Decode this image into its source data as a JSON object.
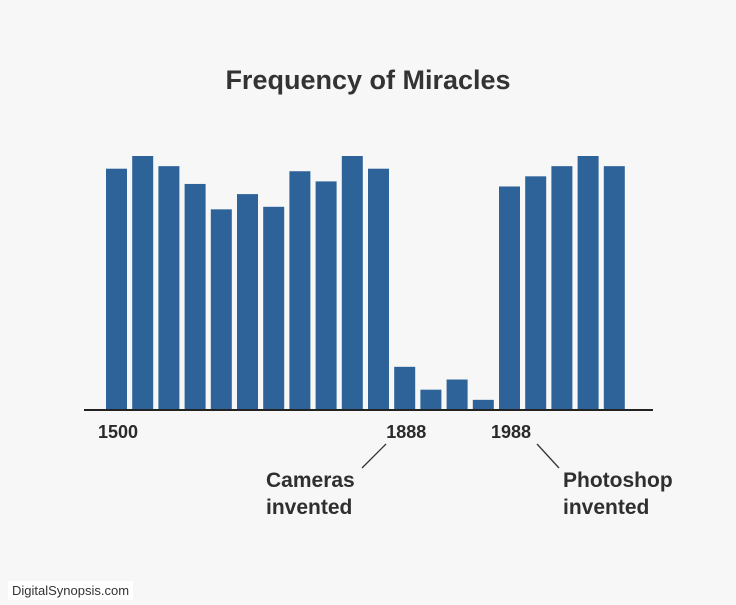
{
  "chart_data": {
    "type": "bar",
    "title": "Frequency of Miracles",
    "xlabel": "",
    "ylabel": "",
    "ylim": [
      0,
      100
    ],
    "grid": false,
    "legend": "none",
    "bar_color": "#2d6399",
    "values": [
      95,
      100,
      96,
      89,
      79,
      85,
      80,
      94,
      90,
      100,
      95,
      17,
      8,
      12,
      4,
      88,
      92,
      96,
      100,
      96
    ],
    "tick_labels": [
      {
        "text": "1500",
        "bar_index": 0
      },
      {
        "text": "1888",
        "bar_index": 11
      },
      {
        "text": "1988",
        "bar_index": 15
      }
    ],
    "annotations": [
      {
        "lines": [
          "Cameras",
          "invented"
        ],
        "points_to": "1888"
      },
      {
        "lines": [
          "Photoshop",
          "invented"
        ],
        "points_to": "1988"
      }
    ]
  },
  "footer": {
    "credit": "DigitalSynopsis.com"
  }
}
